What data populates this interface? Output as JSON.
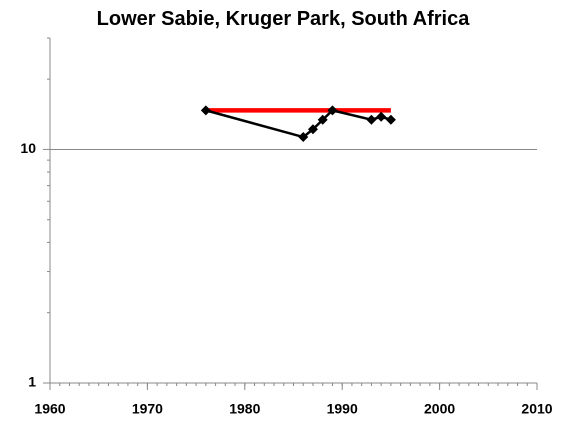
{
  "chart_data": {
    "type": "line",
    "title": "Lower Sabie, Kruger Park, South Africa",
    "xlim": [
      1960,
      2010
    ],
    "xticks": [
      1960,
      1970,
      1980,
      1990,
      2000,
      2010
    ],
    "ylim": [
      1,
      30
    ],
    "yticks": [
      1,
      10
    ],
    "log_y": true,
    "grid": true,
    "series": [
      {
        "color": "#ff0000",
        "marker": false,
        "x": [
          1976,
          1995
        ],
        "values": [
          14.7,
          14.7
        ]
      },
      {
        "color": "#000000",
        "marker": true,
        "x": [
          1976,
          1986,
          1987,
          1988,
          1989,
          1993,
          1994,
          1995
        ],
        "values": [
          14.7,
          11.3,
          12.2,
          13.4,
          14.7,
          13.4,
          13.8,
          13.4
        ]
      }
    ]
  }
}
